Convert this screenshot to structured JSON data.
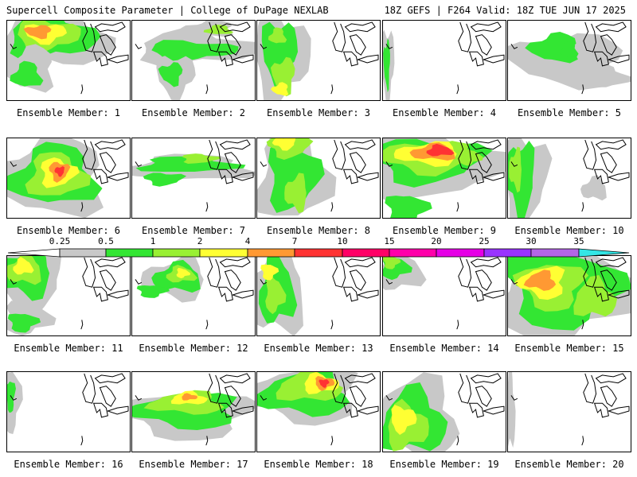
{
  "header": {
    "left_title": "Supercell Composite Parameter | College of DuPage NEXLAB",
    "right_title": "18Z GEFS | F264 Valid: 18Z TUE JUN 17 2025"
  },
  "colorbar": {
    "ticks": [
      "0.25",
      "0.5",
      "1",
      "2",
      "4",
      "7",
      "10",
      "15",
      "20",
      "25",
      "30",
      "35"
    ],
    "colors": [
      "#c8c8c8",
      "#33e633",
      "#99f033",
      "#ffff33",
      "#ff9933",
      "#ff3333",
      "#ff0066",
      "#ff00aa",
      "#e600e6",
      "#9933ff",
      "#b366e6",
      "#33e6e6"
    ]
  },
  "panels": [
    {
      "label": "Ensemble Member: 1"
    },
    {
      "label": "Ensemble Member: 2"
    },
    {
      "label": "Ensemble Member: 3"
    },
    {
      "label": "Ensemble Member: 4"
    },
    {
      "label": "Ensemble Member: 5"
    },
    {
      "label": "Ensemble Member: 6"
    },
    {
      "label": "Ensemble Member: 7"
    },
    {
      "label": "Ensemble Member: 8"
    },
    {
      "label": "Ensemble Member: 9"
    },
    {
      "label": "Ensemble Member: 10"
    },
    {
      "label": "Ensemble Member: 11"
    },
    {
      "label": "Ensemble Member: 12"
    },
    {
      "label": "Ensemble Member: 13"
    },
    {
      "label": "Ensemble Member: 14"
    },
    {
      "label": "Ensemble Member: 15"
    },
    {
      "label": "Ensemble Member: 16"
    },
    {
      "label": "Ensemble Member: 17"
    },
    {
      "label": "Ensemble Member: 18"
    },
    {
      "label": "Ensemble Member: 19"
    },
    {
      "label": "Ensemble Member: 20"
    }
  ]
}
